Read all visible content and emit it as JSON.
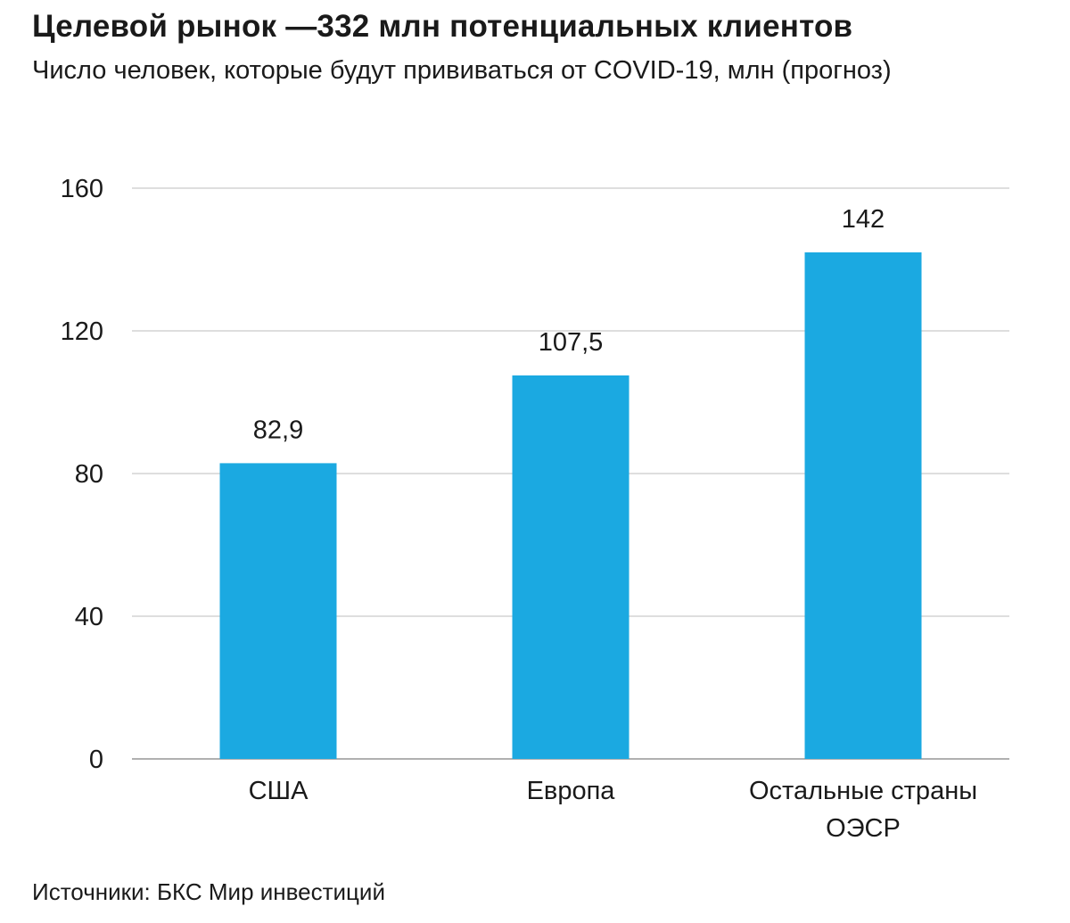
{
  "header": {
    "title": "Целевой рынок —332 млн потенциальных клиентов",
    "subtitle": "Число человек, которые будут прививаться от COVID-19, млн (прогноз)"
  },
  "footer": {
    "source": "Источники: БКС Мир инвестиций"
  },
  "colors": {
    "bar": "#1ba9e1",
    "grid": "#d4d4d4",
    "axis": "#b0b0b0",
    "text": "#1a1a1a"
  },
  "chart_data": {
    "type": "bar",
    "categories": [
      [
        "США"
      ],
      [
        "Европа"
      ],
      [
        "Остальные страны",
        "ОЭСР"
      ]
    ],
    "values": [
      82.9,
      107.5,
      142
    ],
    "data_labels": [
      "82,9",
      "107,5",
      "142"
    ],
    "ylim": [
      0,
      160
    ],
    "yticks": [
      0,
      40,
      80,
      120,
      160
    ],
    "ytick_labels": [
      "0",
      "40",
      "80",
      "120",
      "160"
    ],
    "grid": true,
    "legend": "none"
  }
}
